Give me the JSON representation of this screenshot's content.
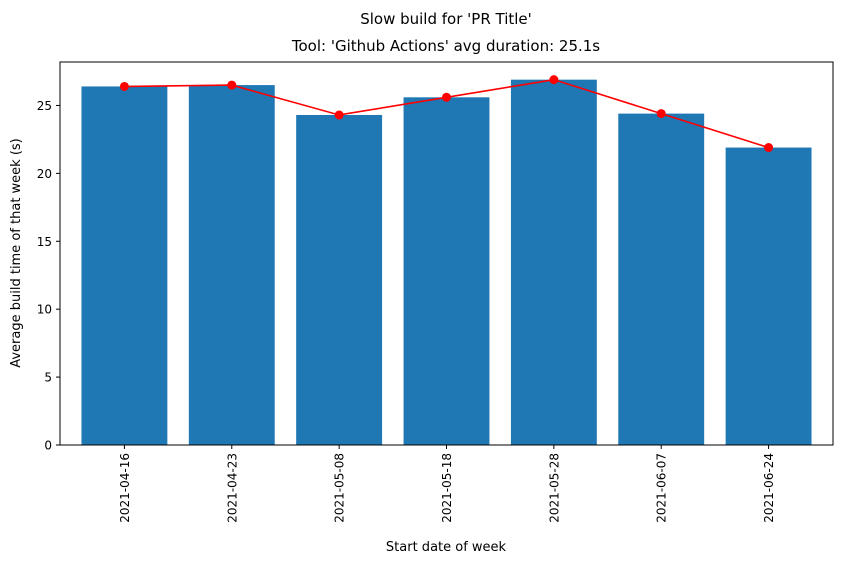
{
  "chart_data": {
    "type": "bar",
    "suptitle": "Slow build for 'PR Title'",
    "title": "Tool: 'Github Actions' avg duration: 25.1s",
    "xlabel": "Start date of week",
    "ylabel": "Average build time of that week (s)",
    "categories": [
      "2021-04-16",
      "2021-04-23",
      "2021-05-08",
      "2021-05-18",
      "2021-05-28",
      "2021-06-07",
      "2021-06-24"
    ],
    "series": [
      {
        "type": "bar",
        "values": [
          26.4,
          26.5,
          24.3,
          25.6,
          26.9,
          24.4,
          21.9
        ],
        "color": "#1f77b4"
      },
      {
        "type": "line",
        "values": [
          26.4,
          26.5,
          24.3,
          25.6,
          26.9,
          24.4,
          21.9
        ],
        "color": "#ff0000",
        "marker": "circle"
      }
    ],
    "yticks": [
      0,
      5,
      10,
      15,
      20,
      25
    ],
    "ylim": [
      0,
      28.2
    ],
    "grid": false,
    "legend": "none",
    "xtick_rotation": 90
  }
}
